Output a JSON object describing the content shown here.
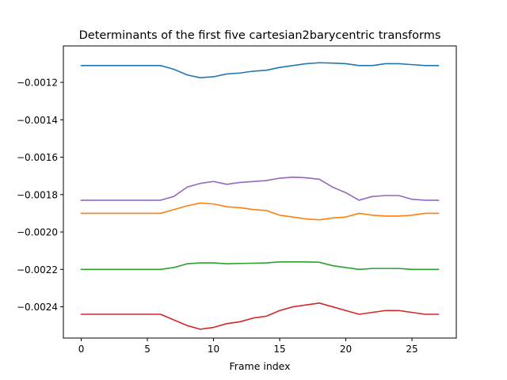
{
  "chart_data": {
    "type": "line",
    "title": "Determinants of the first five cartesian2barycentric transforms",
    "xlabel": "Frame index",
    "ylabel": "",
    "xlim": [
      -1.35,
      28.35
    ],
    "ylim": [
      -0.002567,
      -0.001005
    ],
    "grid": false,
    "legend": "none",
    "x_ticks": [
      0,
      5,
      10,
      15,
      20,
      25
    ],
    "y_ticks": [
      -0.0024,
      -0.0022,
      -0.002,
      -0.0018,
      -0.0016,
      -0.0014,
      -0.0012
    ],
    "x_tick_labels": [
      "0",
      "5",
      "10",
      "15",
      "20",
      "25"
    ],
    "y_tick_labels": [
      "−0.0024",
      "−0.0022",
      "−0.0020",
      "−0.0018",
      "−0.0016",
      "−0.0014",
      "−0.0012"
    ],
    "x": [
      0,
      1,
      2,
      3,
      4,
      5,
      6,
      7,
      8,
      9,
      10,
      11,
      12,
      13,
      14,
      15,
      16,
      17,
      18,
      19,
      20,
      21,
      22,
      23,
      24,
      25,
      26,
      27
    ],
    "series": [
      {
        "color": "#1f77b4",
        "values": [
          -0.00111,
          -0.00111,
          -0.00111,
          -0.00111,
          -0.00111,
          -0.00111,
          -0.00111,
          -0.00113,
          -0.00116,
          -0.001175,
          -0.00117,
          -0.001155,
          -0.00115,
          -0.00114,
          -0.001135,
          -0.00112,
          -0.00111,
          -0.0011,
          -0.001095,
          -0.001097,
          -0.0011,
          -0.00111,
          -0.00111,
          -0.0011,
          -0.0011,
          -0.001105,
          -0.00111,
          -0.00111
        ]
      },
      {
        "color": "#ff7f0e",
        "values": [
          -0.0019,
          -0.0019,
          -0.0019,
          -0.0019,
          -0.0019,
          -0.0019,
          -0.0019,
          -0.00188,
          -0.00186,
          -0.001845,
          -0.00185,
          -0.001865,
          -0.00187,
          -0.00188,
          -0.001885,
          -0.00191,
          -0.00192,
          -0.00193,
          -0.001935,
          -0.001925,
          -0.00192,
          -0.0019,
          -0.00191,
          -0.001915,
          -0.001915,
          -0.00191,
          -0.0019,
          -0.0019
        ]
      },
      {
        "color": "#2ca02c",
        "values": [
          -0.0022,
          -0.0022,
          -0.0022,
          -0.0022,
          -0.0022,
          -0.0022,
          -0.0022,
          -0.00219,
          -0.00217,
          -0.002165,
          -0.002165,
          -0.00217,
          -0.002168,
          -0.002167,
          -0.002165,
          -0.00216,
          -0.00216,
          -0.00216,
          -0.002162,
          -0.00218,
          -0.00219,
          -0.0022,
          -0.002195,
          -0.002195,
          -0.002195,
          -0.0022,
          -0.0022,
          -0.0022
        ]
      },
      {
        "color": "#d62728",
        "values": [
          -0.00244,
          -0.00244,
          -0.00244,
          -0.00244,
          -0.00244,
          -0.00244,
          -0.00244,
          -0.00247,
          -0.0025,
          -0.00252,
          -0.00251,
          -0.00249,
          -0.00248,
          -0.00246,
          -0.00245,
          -0.00242,
          -0.0024,
          -0.00239,
          -0.00238,
          -0.0024,
          -0.00242,
          -0.00244,
          -0.00243,
          -0.00242,
          -0.00242,
          -0.00243,
          -0.00244,
          -0.00244
        ]
      },
      {
        "color": "#9467bd",
        "values": [
          -0.00183,
          -0.00183,
          -0.00183,
          -0.00183,
          -0.00183,
          -0.00183,
          -0.00183,
          -0.00181,
          -0.00176,
          -0.00174,
          -0.00173,
          -0.001745,
          -0.001735,
          -0.00173,
          -0.001725,
          -0.001712,
          -0.001707,
          -0.00171,
          -0.001718,
          -0.00176,
          -0.00179,
          -0.00183,
          -0.00181,
          -0.001805,
          -0.001805,
          -0.001825,
          -0.00183,
          -0.00183
        ]
      }
    ]
  }
}
